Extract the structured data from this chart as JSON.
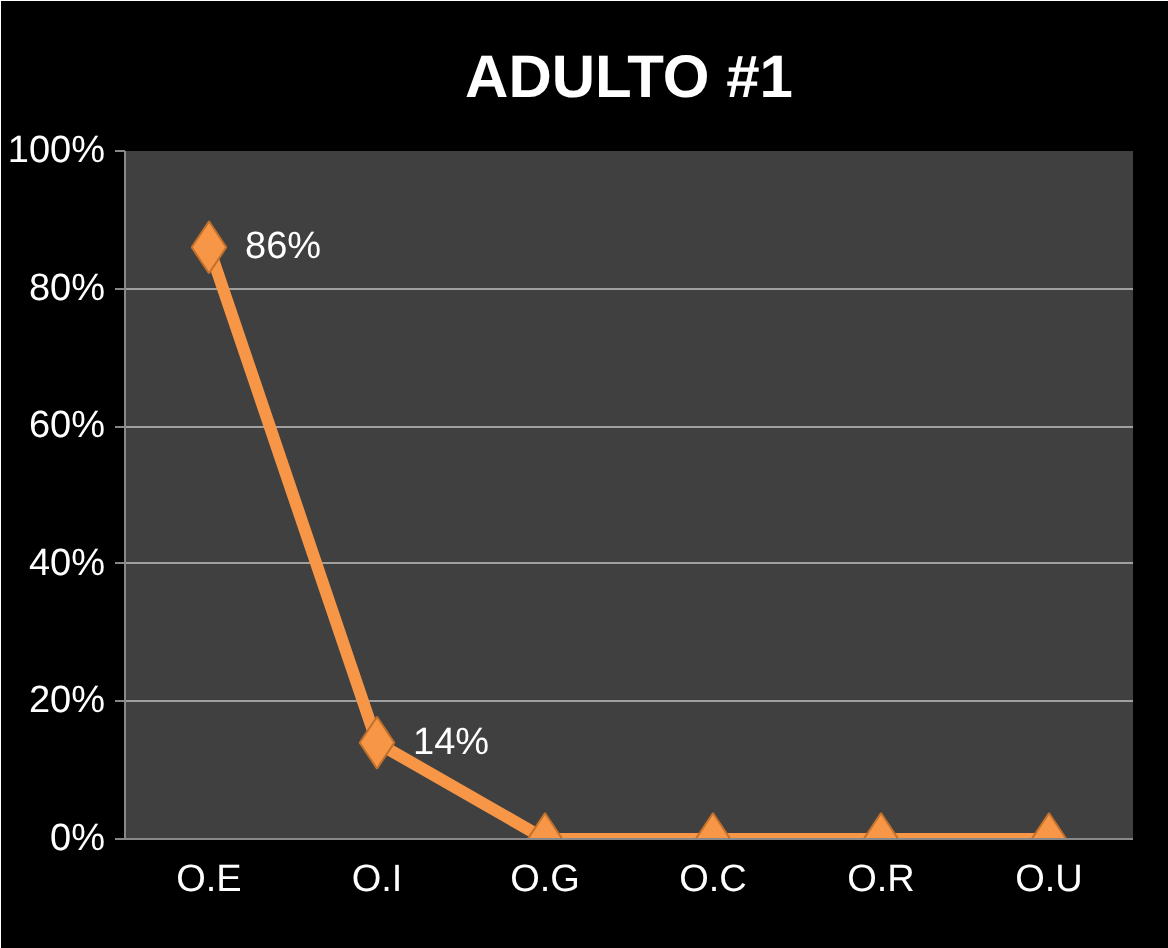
{
  "chart_data": {
    "type": "line",
    "title": "ADULTO #1",
    "categories": [
      "O.E",
      "O.I",
      "O.G",
      "O.C",
      "O.R",
      "O.U"
    ],
    "series": [
      {
        "color": "#f79646",
        "values": [
          86,
          14,
          0,
          0,
          0,
          0
        ],
        "value_labels": [
          "86%",
          "14%",
          null,
          null,
          null,
          null
        ]
      }
    ],
    "ylim": [
      0,
      100
    ],
    "yticks": [
      {
        "value": 0,
        "label": "0%"
      },
      {
        "value": 20,
        "label": "20%"
      },
      {
        "value": 40,
        "label": "40%"
      },
      {
        "value": 60,
        "label": "60%"
      },
      {
        "value": 80,
        "label": "80%"
      },
      {
        "value": 100,
        "label": "100%"
      }
    ],
    "grid": "y",
    "marker": "diamond",
    "line_style": "solid"
  }
}
